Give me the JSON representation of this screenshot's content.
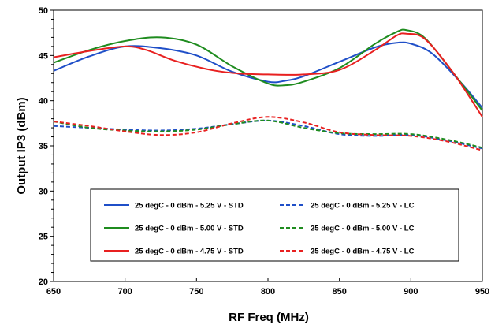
{
  "chart_data": {
    "type": "line",
    "title": "",
    "xlabel": "RF Freq (MHz)",
    "ylabel": "Output IP3 (dBm)",
    "xlim": [
      650,
      950
    ],
    "ylim": [
      20,
      50
    ],
    "xticks": [
      650,
      700,
      750,
      800,
      850,
      900,
      950
    ],
    "yticks": [
      20,
      25,
      30,
      35,
      40,
      45,
      50
    ],
    "grid": false,
    "legend_position": "lower-center",
    "series": [
      {
        "name": "25 degC - 0 dBm - 5.25 V - STD",
        "color": "#1f4fc8",
        "dash": "solid",
        "x": [
          650,
          675,
          700,
          725,
          750,
          775,
          800,
          812,
          825,
          850,
          875,
          890,
          900,
          915,
          935,
          950
        ],
        "y": [
          43.3,
          44.9,
          46.0,
          45.8,
          45.0,
          43.2,
          42.1,
          42.2,
          42.7,
          44.3,
          45.9,
          46.4,
          46.3,
          45.2,
          42.0,
          39.2
        ]
      },
      {
        "name": "25 degC - 0 dBm - 5.00 V - STD",
        "color": "#1f8c1f",
        "dash": "solid",
        "x": [
          650,
          675,
          700,
          725,
          750,
          775,
          800,
          812,
          825,
          850,
          875,
          890,
          897,
          910,
          930,
          950
        ],
        "y": [
          44.2,
          45.6,
          46.6,
          47.0,
          46.2,
          43.8,
          41.9,
          41.7,
          42.1,
          43.6,
          46.3,
          47.6,
          47.8,
          46.9,
          43.0,
          38.9
        ]
      },
      {
        "name": "25 degC - 0 dBm - 4.75 V - STD",
        "color": "#e82020",
        "dash": "solid",
        "x": [
          650,
          675,
          700,
          715,
          735,
          760,
          780,
          800,
          825,
          850,
          875,
          890,
          897,
          910,
          930,
          950
        ],
        "y": [
          44.8,
          45.5,
          46.0,
          45.6,
          44.4,
          43.4,
          43.0,
          42.9,
          42.9,
          43.4,
          45.6,
          47.2,
          47.4,
          46.8,
          43.0,
          38.2
        ]
      },
      {
        "name": "25 degC - 0 dBm - 5.25 V - LC",
        "color": "#1f4fc8",
        "dash": "dashed",
        "x": [
          650,
          675,
          700,
          725,
          750,
          775,
          800,
          825,
          850,
          875,
          900,
          925,
          950
        ],
        "y": [
          37.2,
          37.0,
          36.8,
          36.7,
          36.9,
          37.4,
          37.8,
          37.2,
          36.3,
          36.1,
          36.2,
          35.6,
          34.7
        ]
      },
      {
        "name": "25 degC - 0 dBm - 5.00 V - LC",
        "color": "#1f8c1f",
        "dash": "dashed",
        "x": [
          650,
          675,
          700,
          725,
          750,
          775,
          800,
          825,
          850,
          875,
          900,
          925,
          950
        ],
        "y": [
          37.7,
          37.0,
          36.7,
          36.6,
          36.8,
          37.4,
          37.8,
          37.0,
          36.4,
          36.3,
          36.3,
          35.7,
          34.8
        ]
      },
      {
        "name": "25 degC - 0 dBm - 4.75 V - LC",
        "color": "#e82020",
        "dash": "dashed",
        "x": [
          650,
          675,
          700,
          725,
          750,
          775,
          800,
          825,
          850,
          875,
          900,
          925,
          950
        ],
        "y": [
          37.7,
          37.2,
          36.6,
          36.2,
          36.5,
          37.5,
          38.2,
          37.6,
          36.5,
          36.2,
          36.1,
          35.5,
          34.5
        ]
      }
    ]
  }
}
